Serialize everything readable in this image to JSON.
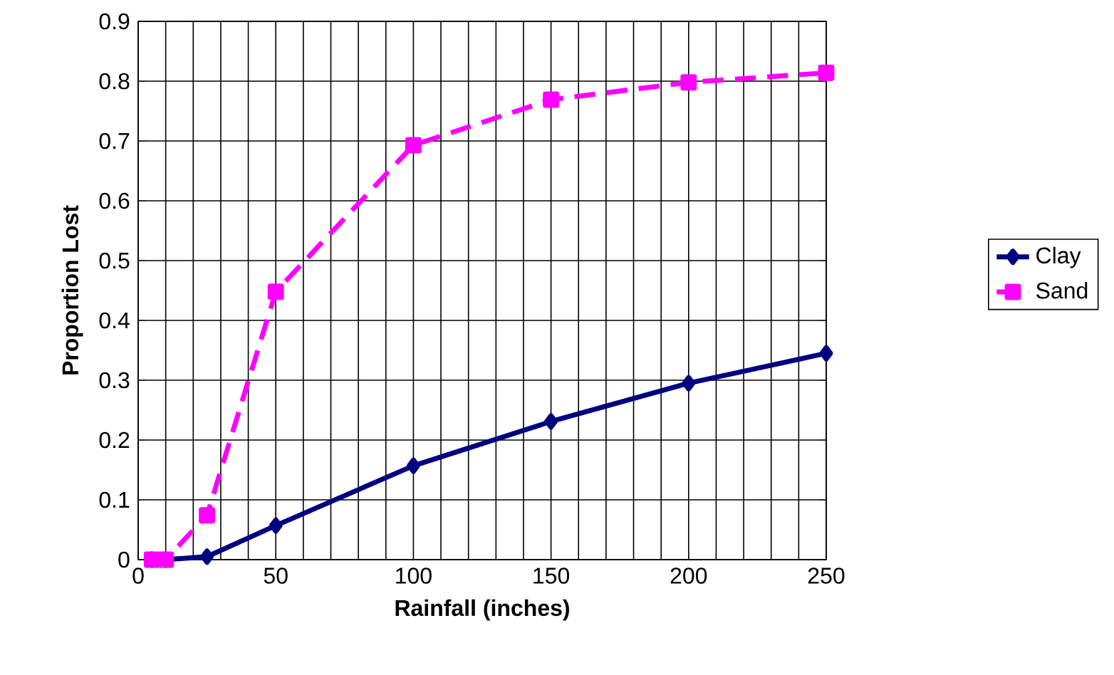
{
  "chart_data": {
    "type": "line",
    "xlabel": "Rainfall (inches)",
    "ylabel": "Proportion Lost",
    "xlim": [
      0,
      250
    ],
    "xticks": [
      0,
      50,
      100,
      150,
      200,
      250
    ],
    "ylim": [
      0,
      0.9
    ],
    "yticks": [
      0,
      0.1,
      0.2,
      0.3,
      0.4,
      0.5,
      0.6,
      0.7,
      0.8,
      0.9
    ],
    "grid": true,
    "legend": "right",
    "x": [
      5,
      10,
      25,
      50,
      100,
      150,
      200,
      250
    ],
    "series": [
      {
        "name": "Clay",
        "color": "#000080",
        "marker": "diamond",
        "line_style": "solid",
        "values": [
          0,
          0,
          0.005,
          0.057,
          0.157,
          0.231,
          0.295,
          0.345
        ]
      },
      {
        "name": "Sand",
        "color": "#ff00ff",
        "marker": "square",
        "line_style": "dashed",
        "values": [
          0,
          0,
          0.074,
          0.448,
          0.693,
          0.769,
          0.798,
          0.814
        ]
      }
    ]
  }
}
